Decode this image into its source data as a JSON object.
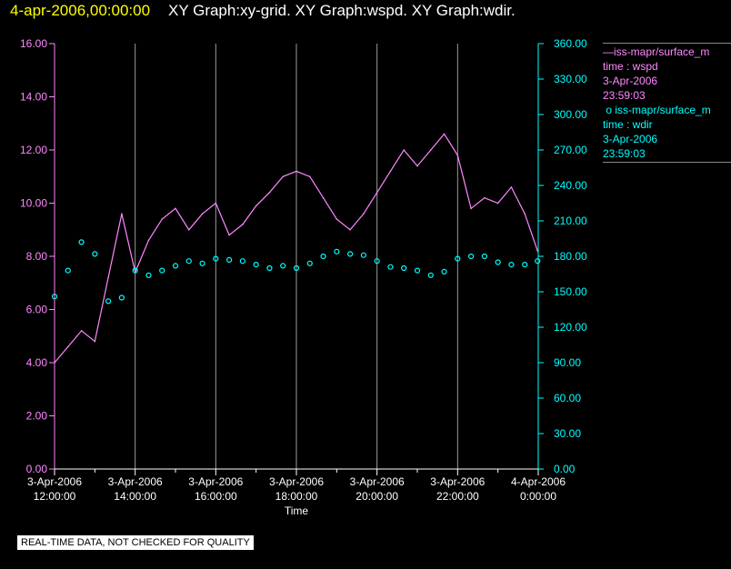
{
  "header": {
    "date": "4-apr-2006,00:00:00",
    "title": "XY Graph:xy-grid.  XY Graph:wspd.  XY Graph:wdir."
  },
  "legend": {
    "wspd": {
      "name": "iss-mapr/surface_m",
      "label": "time : wspd",
      "date": "3-Apr-2006",
      "time": "23:59:03",
      "color": "#ff88ff"
    },
    "wdir": {
      "name": "iss-mapr/surface_m",
      "label": "time : wdir",
      "date": "3-Apr-2006",
      "time": "23:59:03",
      "color": "#00ffff"
    }
  },
  "notice": "REAL-TIME DATA, NOT CHECKED FOR QUALITY",
  "chart_data": {
    "type": "line",
    "xlabel": "Time",
    "x_ticks": [
      {
        "date": "3-Apr-2006",
        "time": "12:00:00"
      },
      {
        "date": "3-Apr-2006",
        "time": "14:00:00"
      },
      {
        "date": "3-Apr-2006",
        "time": "16:00:00"
      },
      {
        "date": "3-Apr-2006",
        "time": "18:00:00"
      },
      {
        "date": "3-Apr-2006",
        "time": "20:00:00"
      },
      {
        "date": "3-Apr-2006",
        "time": "22:00:00"
      },
      {
        "date": "4-Apr-2006",
        "time": "0:00:00"
      }
    ],
    "xlim": [
      "2006-04-03T12:00:00",
      "2006-04-04T00:00:00"
    ],
    "grid": "vertical",
    "y_left": {
      "ticks": [
        "0.00",
        "2.00",
        "4.00",
        "6.00",
        "8.00",
        "10.00",
        "12.00",
        "14.00",
        "16.00"
      ],
      "ylim": [
        0,
        16
      ],
      "color": "#ff88ff"
    },
    "y_right": {
      "ticks": [
        "0.00",
        "30.00",
        "60.00",
        "90.00",
        "120.00",
        "150.00",
        "180.00",
        "210.00",
        "240.00",
        "270.00",
        "300.00",
        "330.00",
        "360.00"
      ],
      "ylim": [
        0,
        360
      ],
      "color": "#00ffff"
    },
    "series": [
      {
        "name": "iss-mapr/surface_m (time : wspd)",
        "axis": "left",
        "style": "line",
        "color": "#ff88ff",
        "x": [
          "12:00",
          "12:20",
          "12:40",
          "13:00",
          "13:20",
          "13:40",
          "14:00",
          "14:20",
          "14:40",
          "15:00",
          "15:20",
          "15:40",
          "16:00",
          "16:20",
          "16:40",
          "17:00",
          "17:20",
          "17:40",
          "18:00",
          "18:20",
          "18:40",
          "19:00",
          "19:20",
          "19:40",
          "20:00",
          "20:20",
          "20:40",
          "21:00",
          "21:20",
          "21:40",
          "22:00",
          "22:20",
          "22:40",
          "23:00",
          "23:20",
          "23:40",
          "23:59"
        ],
        "y": [
          4.0,
          4.6,
          5.2,
          4.8,
          7.2,
          9.6,
          7.4,
          8.6,
          9.4,
          9.8,
          9.0,
          9.6,
          10.0,
          8.8,
          9.2,
          9.9,
          10.4,
          11.0,
          11.2,
          11.0,
          10.2,
          9.4,
          9.0,
          9.6,
          10.4,
          11.2,
          12.0,
          11.4,
          12.0,
          12.6,
          11.8,
          9.8,
          10.2,
          10.0,
          10.6,
          9.6,
          8.2
        ]
      },
      {
        "name": "iss-mapr/surface_m (time : wdir)",
        "axis": "right",
        "style": "scatter",
        "color": "#00ffff",
        "x": [
          "12:00",
          "12:20",
          "12:40",
          "13:00",
          "13:20",
          "13:40",
          "14:00",
          "14:20",
          "14:40",
          "15:00",
          "15:20",
          "15:40",
          "16:00",
          "16:20",
          "16:40",
          "17:00",
          "17:20",
          "17:40",
          "18:00",
          "18:20",
          "18:40",
          "19:00",
          "19:20",
          "19:40",
          "20:00",
          "20:20",
          "20:40",
          "21:00",
          "21:20",
          "21:40",
          "22:00",
          "22:20",
          "22:40",
          "23:00",
          "23:20",
          "23:40",
          "23:59"
        ],
        "y": [
          146,
          168,
          192,
          182,
          142,
          145,
          168,
          164,
          168,
          172,
          176,
          174,
          178,
          177,
          176,
          173,
          170,
          172,
          170,
          174,
          180,
          184,
          182,
          181,
          176,
          171,
          170,
          168,
          164,
          167,
          178,
          180,
          180,
          175,
          173,
          173,
          176
        ]
      }
    ]
  }
}
